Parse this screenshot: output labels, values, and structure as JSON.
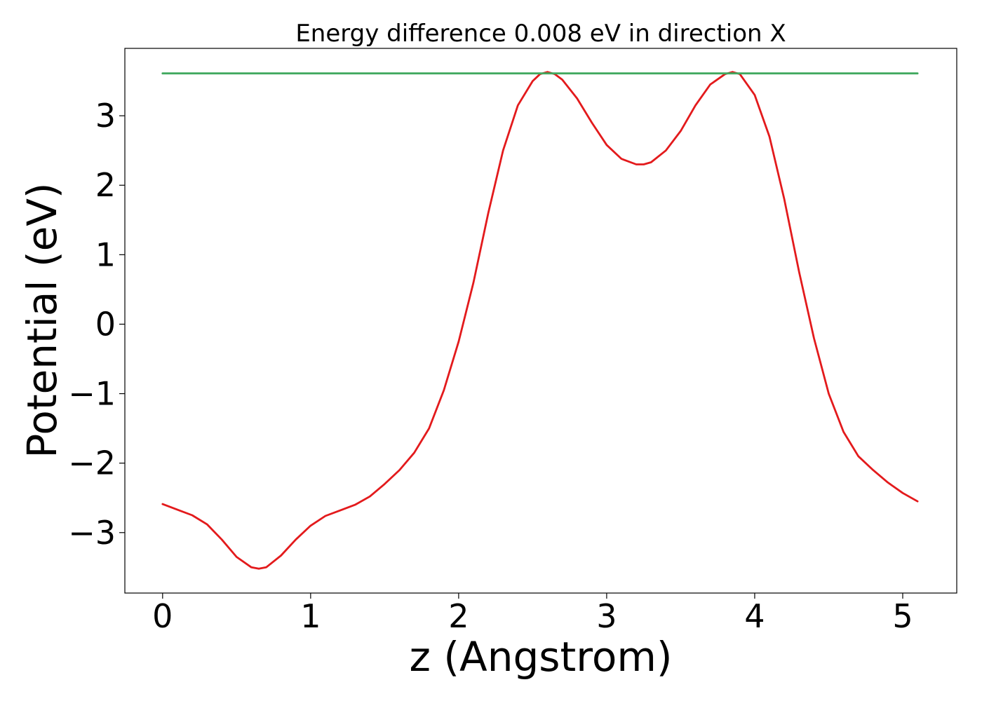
{
  "chart_data": {
    "type": "line",
    "title": "Energy difference 0.008 eV in direction X",
    "xlabel": "z (Angstrom)",
    "ylabel": "Potential (eV)",
    "xlim": [
      -0.255,
      5.365
    ],
    "ylim": [
      -3.87,
      3.97
    ],
    "xticks": [
      0,
      1,
      2,
      3,
      4,
      5
    ],
    "yticks": [
      -3,
      -2,
      -1,
      0,
      1,
      2,
      3
    ],
    "xtick_labels": [
      "0",
      "1",
      "2",
      "3",
      "4",
      "5"
    ],
    "ytick_labels": [
      "−3",
      "−2",
      "−1",
      "0",
      "1",
      "2",
      "3"
    ],
    "grid": false,
    "series": [
      {
        "color": "#e31a1c",
        "x": [
          0.0,
          0.1,
          0.2,
          0.3,
          0.4,
          0.5,
          0.6,
          0.65,
          0.7,
          0.8,
          0.9,
          1.0,
          1.1,
          1.2,
          1.3,
          1.4,
          1.5,
          1.6,
          1.7,
          1.8,
          1.9,
          2.0,
          2.1,
          2.2,
          2.3,
          2.4,
          2.5,
          2.55,
          2.6,
          2.65,
          2.7,
          2.8,
          2.9,
          3.0,
          3.1,
          3.2,
          3.25,
          3.3,
          3.4,
          3.5,
          3.6,
          3.7,
          3.8,
          3.85,
          3.9,
          4.0,
          4.1,
          4.2,
          4.3,
          4.4,
          4.5,
          4.6,
          4.7,
          4.8,
          4.9,
          5.0,
          5.1
        ],
        "y": [
          -2.59,
          -2.67,
          -2.75,
          -2.88,
          -3.1,
          -3.35,
          -3.5,
          -3.52,
          -3.5,
          -3.33,
          -3.1,
          -2.9,
          -2.76,
          -2.68,
          -2.6,
          -2.48,
          -2.3,
          -2.1,
          -1.85,
          -1.5,
          -0.95,
          -0.25,
          0.6,
          1.6,
          2.5,
          3.15,
          3.5,
          3.6,
          3.63,
          3.6,
          3.52,
          3.25,
          2.9,
          2.58,
          2.38,
          2.3,
          2.3,
          2.33,
          2.5,
          2.78,
          3.15,
          3.45,
          3.6,
          3.63,
          3.6,
          3.3,
          2.7,
          1.8,
          0.75,
          -0.2,
          -1.0,
          -1.55,
          -1.9,
          -2.1,
          -2.28,
          -2.43,
          -2.55
        ]
      },
      {
        "color": "#41a85f",
        "x": [
          0.0,
          5.1
        ],
        "y": [
          3.61,
          3.61
        ]
      }
    ]
  }
}
